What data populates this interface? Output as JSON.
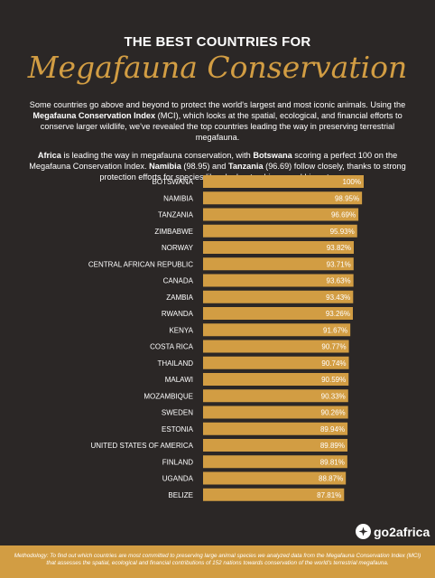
{
  "header": {
    "kicker": "THE BEST COUNTRIES FOR",
    "title": "Megafauna Conservation"
  },
  "intro": {
    "p1_a": "Some countries go above and beyond to protect the world's largest and most iconic animals. Using the ",
    "p1_b": "Megafauna Conservation Index",
    "p1_c": " (MCI), which looks at the spatial, ecological, and financial efforts to conserve larger wildlife, we've revealed the top countries leading the way in preserving terrestrial megafauna.",
    "p2_a": "Africa",
    "p2_b": " is leading the way in megafauna conservation, with ",
    "p2_c": "Botswana",
    "p2_d": " scoring a perfect 100 on the Megafauna Conservation Index. ",
    "p2_e": "Namibia",
    "p2_f": " (98.95) and ",
    "p2_g": "Tanzania",
    "p2_h": " (96.69) follow closely, thanks to strong protection efforts for species like elephants, rhinos, and big cats."
  },
  "chart_data": {
    "type": "bar",
    "orientation": "horizontal",
    "categories": [
      "BOTSWANA",
      "NAMIBIA",
      "TANZANIA",
      "ZIMBABWE",
      "NORWAY",
      "CENTRAL AFRICAN REPUBLIC",
      "CANADA",
      "ZAMBIA",
      "RWANDA",
      "KENYA",
      "COSTA RICA",
      "THAILAND",
      "MALAWI",
      "MOZAMBIQUE",
      "SWEDEN",
      "ESTONIA",
      "UNITED STATES OF AMERICA",
      "FINLAND",
      "UGANDA",
      "BELIZE"
    ],
    "values": [
      100,
      98.95,
      96.69,
      95.93,
      93.82,
      93.71,
      93.63,
      93.43,
      93.26,
      91.67,
      90.77,
      90.74,
      90.59,
      90.33,
      90.26,
      89.94,
      89.89,
      89.81,
      88.87,
      87.81
    ],
    "value_labels": [
      "100%",
      "98.95%",
      "96.69%",
      "95.93%",
      "93.82%",
      "93.71%",
      "93.63%",
      "93.43%",
      "93.26%",
      "91.67%",
      "90.77%",
      "90.74%",
      "90.59%",
      "90.33%",
      "90.26%",
      "89.94%",
      "89.89%",
      "89.81%",
      "88.87%",
      "87.81%"
    ],
    "xlim": [
      0,
      100
    ],
    "title": "",
    "xlabel": "",
    "ylabel": "",
    "grid": false,
    "bar_color": "#d29d43"
  },
  "branding": {
    "logo_text": "go2africa"
  },
  "footer": {
    "text": "Methodology: To find out which countries are most committed to preserving large animal species we analyzed data from the Megafauna Conservation Index (MCI) that assesses the spatial, ecological and financial contributions of 152 nations towards conservation of the world's terrestrial megafauna."
  },
  "colors": {
    "background": "#2b2726",
    "accent": "#d29d43",
    "text": "#ffffff"
  }
}
